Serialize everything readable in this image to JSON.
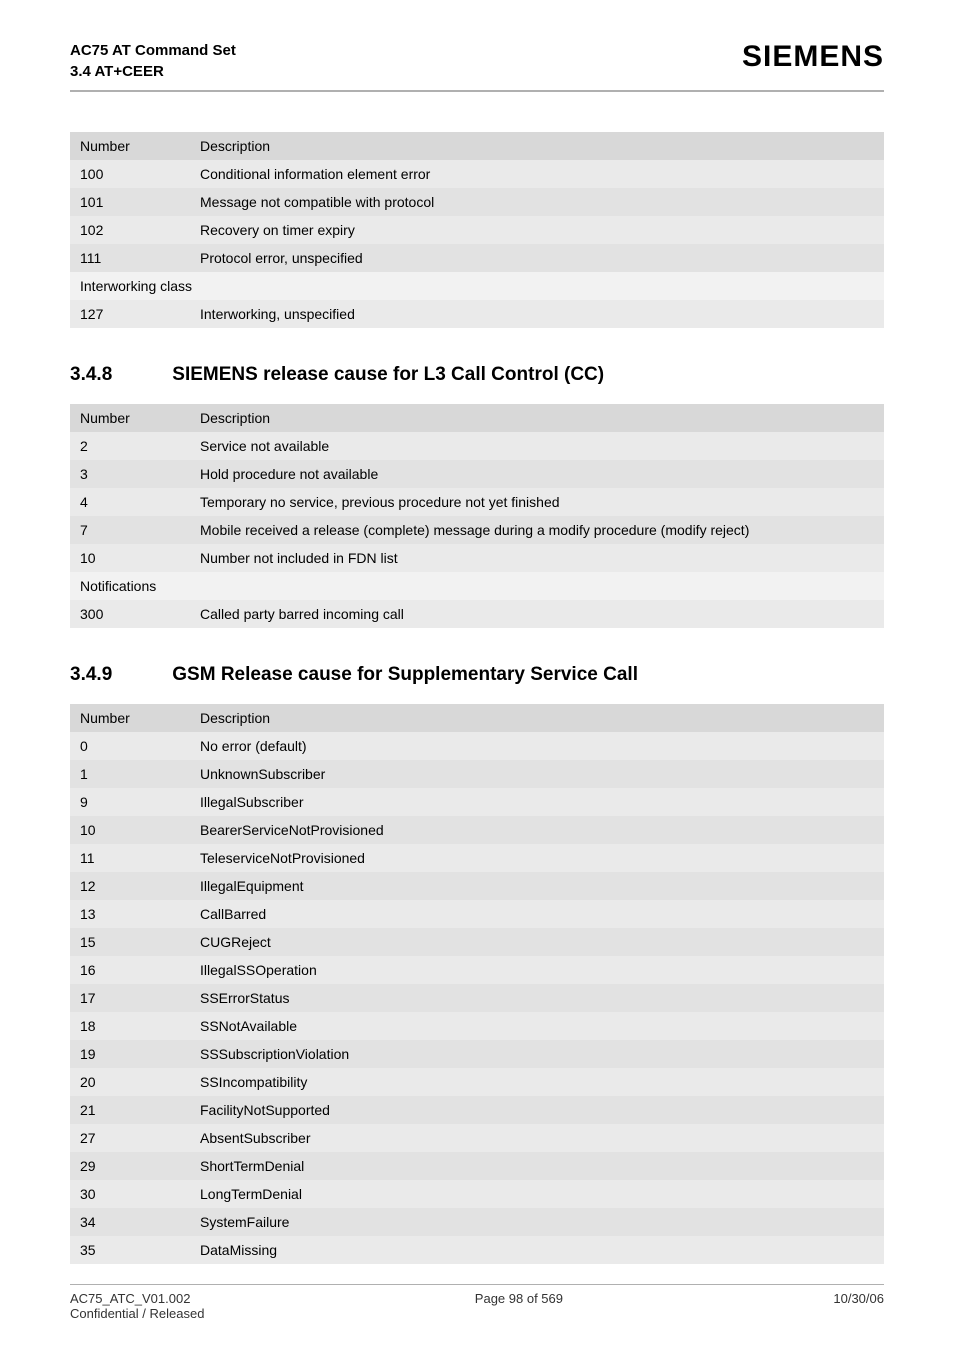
{
  "header": {
    "line1": "AC75 AT Command Set",
    "line2": "3.4 AT+CEER",
    "logo": "SIEMENS"
  },
  "table1": {
    "cols": [
      "Number",
      "Description"
    ],
    "rows": [
      {
        "num": "100",
        "desc": "Conditional information element error"
      },
      {
        "num": "101",
        "desc": "Message not compatible with protocol"
      },
      {
        "num": "102",
        "desc": "Recovery on timer expiry"
      },
      {
        "num": "111",
        "desc": "Protocol error, unspecified"
      }
    ],
    "subhead": "Interworking class",
    "rows2": [
      {
        "num": "127",
        "desc": "Interworking, unspecified"
      }
    ]
  },
  "section348": {
    "num": "3.4.8",
    "title": "SIEMENS release cause for L3 Call Control (CC)"
  },
  "table2": {
    "cols": [
      "Number",
      "Description"
    ],
    "rows": [
      {
        "num": "2",
        "desc": "Service not available"
      },
      {
        "num": "3",
        "desc": "Hold procedure not available"
      },
      {
        "num": "4",
        "desc": "Temporary no service, previous procedure not yet finished"
      },
      {
        "num": "7",
        "desc": "Mobile received a release (complete) message during a modify procedure (modify reject)"
      },
      {
        "num": "10",
        "desc": "Number not included in FDN list"
      }
    ],
    "subhead": "Notifications",
    "rows2": [
      {
        "num": "300",
        "desc": "Called party barred incoming call"
      }
    ]
  },
  "section349": {
    "num": "3.4.9",
    "title": "GSM Release cause for Supplementary Service Call"
  },
  "table3": {
    "cols": [
      "Number",
      "Description"
    ],
    "rows": [
      {
        "num": "0",
        "desc": "No error (default)"
      },
      {
        "num": "1",
        "desc": "UnknownSubscriber"
      },
      {
        "num": "9",
        "desc": "IllegalSubscriber"
      },
      {
        "num": "10",
        "desc": "BearerServiceNotProvisioned"
      },
      {
        "num": "11",
        "desc": "TeleserviceNotProvisioned"
      },
      {
        "num": "12",
        "desc": "IllegalEquipment"
      },
      {
        "num": "13",
        "desc": "CallBarred"
      },
      {
        "num": "15",
        "desc": "CUGReject"
      },
      {
        "num": "16",
        "desc": "IllegalSSOperation"
      },
      {
        "num": "17",
        "desc": "SSErrorStatus"
      },
      {
        "num": "18",
        "desc": "SSNotAvailable"
      },
      {
        "num": "19",
        "desc": "SSSubscriptionViolation"
      },
      {
        "num": "20",
        "desc": "SSIncompatibility"
      },
      {
        "num": "21",
        "desc": "FacilityNotSupported"
      },
      {
        "num": "27",
        "desc": "AbsentSubscriber"
      },
      {
        "num": "29",
        "desc": "ShortTermDenial"
      },
      {
        "num": "30",
        "desc": "LongTermDenial"
      },
      {
        "num": "34",
        "desc": "SystemFailure"
      },
      {
        "num": "35",
        "desc": "DataMissing"
      }
    ]
  },
  "footer": {
    "left1": "AC75_ATC_V01.002",
    "left2": "Confidential / Released",
    "center": "Page 98 of 569",
    "right": "10/30/06"
  }
}
